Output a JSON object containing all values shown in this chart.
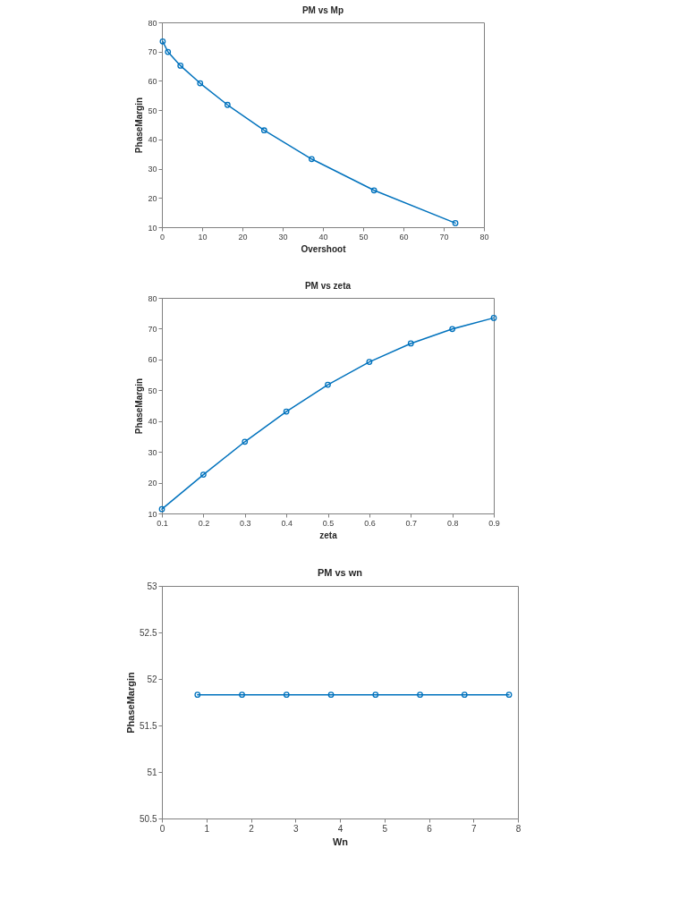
{
  "chart_data": [
    {
      "type": "line",
      "title": "PM vs Mp",
      "xlabel": "Overshoot",
      "ylabel": "PhaseMargin",
      "x": [
        72.9,
        52.7,
        37.2,
        25.4,
        16.3,
        9.5,
        4.6,
        1.5,
        0.2
      ],
      "series": [
        {
          "color": "#0072bd",
          "values": [
            11.4,
            22.6,
            33.3,
            43.1,
            51.8,
            59.2,
            65.2,
            69.9,
            73.5
          ]
        }
      ],
      "xlim": [
        0,
        80
      ],
      "ylim": [
        10,
        80
      ],
      "xticks": [
        0,
        10,
        20,
        30,
        40,
        50,
        60,
        70,
        80
      ],
      "yticks": [
        10,
        20,
        30,
        40,
        50,
        60,
        70,
        80
      ],
      "marker": "circle",
      "line_style": "solid",
      "grid": false
    },
    {
      "type": "line",
      "title": "PM vs zeta",
      "xlabel": "zeta",
      "ylabel": "PhaseMargin",
      "x": [
        0.1,
        0.2,
        0.3,
        0.4,
        0.5,
        0.6,
        0.7,
        0.8,
        0.9
      ],
      "series": [
        {
          "color": "#0072bd",
          "values": [
            11.4,
            22.6,
            33.3,
            43.1,
            51.8,
            59.2,
            65.2,
            69.9,
            73.5
          ]
        }
      ],
      "xlim": [
        0.1,
        0.9
      ],
      "ylim": [
        10,
        80
      ],
      "xticks": [
        0.1,
        0.2,
        0.3,
        0.4,
        0.5,
        0.6,
        0.7,
        0.8,
        0.9
      ],
      "yticks": [
        10,
        20,
        30,
        40,
        50,
        60,
        70,
        80
      ],
      "marker": "circle",
      "line_style": "solid",
      "grid": false
    },
    {
      "type": "line",
      "title": "PM vs wn",
      "xlabel": "Wn",
      "ylabel": "PhaseMargin",
      "x": [
        0.8,
        1.8,
        2.8,
        3.8,
        4.8,
        5.8,
        6.8,
        7.8
      ],
      "series": [
        {
          "color": "#0072bd",
          "values": [
            51.83,
            51.83,
            51.83,
            51.83,
            51.83,
            51.83,
            51.83,
            51.83
          ]
        }
      ],
      "xlim": [
        0,
        8
      ],
      "ylim": [
        50.5,
        53
      ],
      "xticks": [
        0,
        1,
        2,
        3,
        4,
        5,
        6,
        7,
        8
      ],
      "yticks": [
        50.5,
        51,
        51.5,
        52,
        52.5,
        53
      ],
      "marker": "circle",
      "line_style": "solid",
      "grid": false
    }
  ]
}
